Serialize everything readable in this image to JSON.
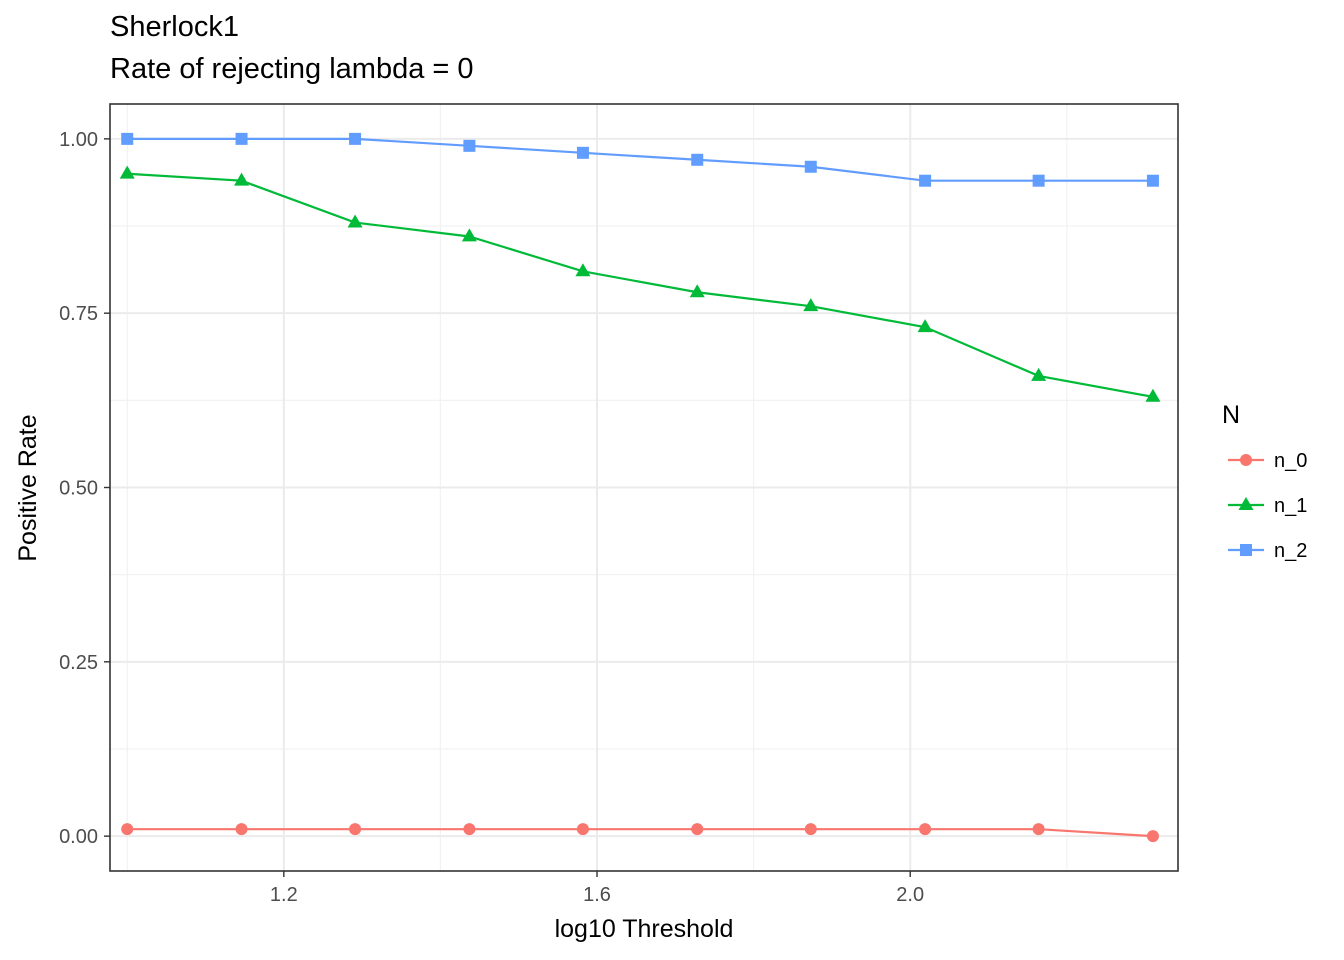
{
  "chart_data": {
    "type": "line",
    "title": "Sherlock1",
    "subtitle": "Rate of rejecting lambda = 0",
    "xlabel": "log10 Threshold",
    "ylabel": "Positive Rate",
    "xlim": [
      0.978,
      2.342
    ],
    "ylim": [
      -0.05,
      1.05
    ],
    "x_ticks": [
      1.2,
      1.6,
      2.0
    ],
    "x_tick_labels": [
      "1.2",
      "1.6",
      "2.0"
    ],
    "x_minor_ticks": [
      1.0,
      1.4,
      1.8,
      2.2
    ],
    "y_ticks": [
      0.0,
      0.25,
      0.5,
      0.75,
      1.0
    ],
    "y_tick_labels": [
      "0.00",
      "0.25",
      "0.50",
      "0.75",
      "1.00"
    ],
    "y_minor_ticks": [
      0.125,
      0.375,
      0.625,
      0.875
    ],
    "grid": true,
    "legend_title": "N",
    "legend_position": "right",
    "x": [
      1.0,
      1.146,
      1.291,
      1.437,
      1.582,
      1.728,
      1.873,
      2.019,
      2.164,
      2.31
    ],
    "series": [
      {
        "name": "n_0",
        "color": "#F8766D",
        "marker": "circle",
        "values": [
          0.01,
          0.01,
          0.01,
          0.01,
          0.01,
          0.01,
          0.01,
          0.01,
          0.01,
          0.0
        ]
      },
      {
        "name": "n_1",
        "color": "#00BA38",
        "marker": "triangle",
        "values": [
          0.95,
          0.94,
          0.88,
          0.86,
          0.81,
          0.78,
          0.76,
          0.73,
          0.66,
          0.63
        ]
      },
      {
        "name": "n_2",
        "color": "#619CFF",
        "marker": "square",
        "values": [
          1.0,
          1.0,
          1.0,
          0.99,
          0.98,
          0.97,
          0.96,
          0.94,
          0.94,
          0.94
        ]
      }
    ]
  }
}
